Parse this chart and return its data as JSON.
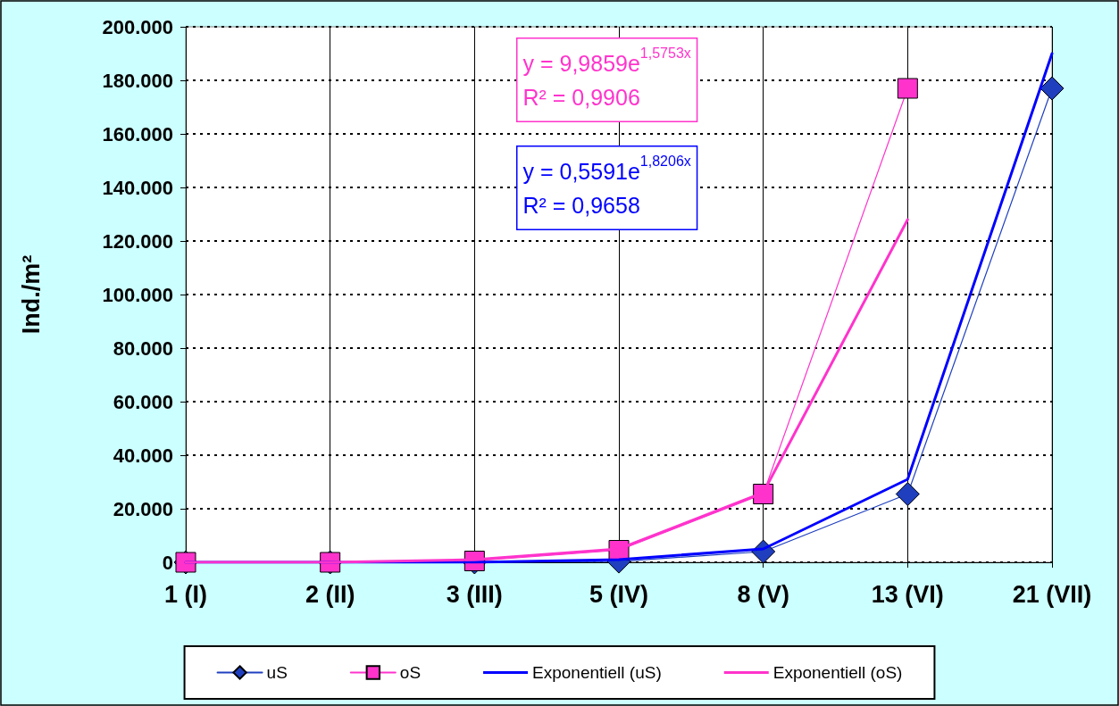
{
  "chart_data": {
    "type": "line",
    "ylabel": "Ind./m²",
    "categories": [
      "1 (I)",
      "2 (II)",
      "3 (III)",
      "5 (IV)",
      "8 (V)",
      "13 (VI)",
      "21 (VII)"
    ],
    "series": [
      {
        "name": "uS",
        "color": "#1f3fbf",
        "marker": "diamond",
        "values": [
          0,
          0,
          0,
          300,
          4000,
          25500,
          177000
        ]
      },
      {
        "name": "oS",
        "color": "#ff33cc",
        "marker": "square",
        "values": [
          0,
          0,
          500,
          4500,
          25500,
          177000,
          null
        ]
      },
      {
        "name": "Exponentiell (uS)",
        "type": "line",
        "color": "#0000ff",
        "marker": "none",
        "values": [
          0,
          0,
          0,
          1000,
          5000,
          31000,
          190000
        ]
      },
      {
        "name": "Exponentiell (oS)",
        "type": "line",
        "color": "#ff33cc",
        "marker": "none",
        "values": [
          0,
          0,
          1000,
          5000,
          26000,
          128000,
          null
        ]
      }
    ],
    "ylim": [
      0,
      200000
    ],
    "yticks": [
      0,
      {
        "value": 20000,
        "label": "20.000"
      },
      {
        "value": 40000,
        "label": "40.000"
      },
      {
        "value": 60000,
        "label": "60.000"
      },
      {
        "value": 80000,
        "label": "80.000"
      },
      {
        "value": 100000,
        "label": "100.000"
      },
      {
        "value": 120000,
        "label": "120.000"
      },
      {
        "value": 140000,
        "label": "140.000"
      },
      {
        "value": 160000,
        "label": "160.000"
      },
      {
        "value": 180000,
        "label": "180.000"
      },
      {
        "value": 200000,
        "label": "200.000"
      }
    ],
    "annotations": [
      "y = 9,9859e$^{1,5753x}$",
      "R² = 0,9906",
      "y = 0,5591e$^{1,8206x}$",
      "R² = 0,9658"
    ],
    "grid": true,
    "legend": "bottom",
    "line_style": "solid"
  }
}
